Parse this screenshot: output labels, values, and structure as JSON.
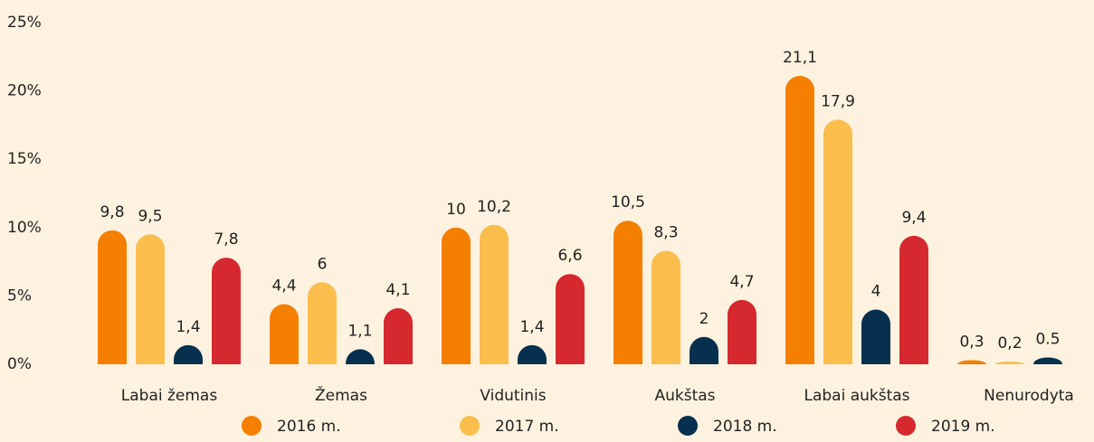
{
  "chart_data": {
    "type": "bar",
    "categories": [
      "Labai žemas",
      "Žemas",
      "Vidutinis",
      "Aukštas",
      "Labai aukštas",
      "Nenurodyta"
    ],
    "series": [
      {
        "name": "2016 m.",
        "color": "#f47f00",
        "values": [
          9.8,
          4.4,
          10,
          10.5,
          21.1,
          0.3
        ],
        "value_labels": [
          "9,8",
          "4,4",
          "10",
          "10,5",
          "21,1",
          "0,3"
        ]
      },
      {
        "name": "2017 m.",
        "color": "#fbbd4c",
        "values": [
          9.5,
          6,
          10.2,
          8.3,
          17.9,
          0.2
        ],
        "value_labels": [
          "9,5",
          "6",
          "10,2",
          "8,3",
          "17,9",
          "0,2"
        ]
      },
      {
        "name": "2018 m.",
        "color": "#07304f",
        "values": [
          1.4,
          1.1,
          1.4,
          2,
          4,
          0.5
        ],
        "value_labels": [
          "1,4",
          "1,1",
          "1,4",
          "2",
          "4",
          "0.5"
        ]
      },
      {
        "name": "2019 m.",
        "color": "#d6282f",
        "values": [
          7.8,
          4.1,
          6.6,
          4.7,
          9.4,
          null
        ],
        "value_labels": [
          "7,8",
          "4,1",
          "6,6",
          "4,7",
          "9,4",
          null
        ]
      }
    ],
    "ylim": [
      0,
      25
    ],
    "yticks": [
      {
        "value": 0,
        "label": "0%"
      },
      {
        "value": 5,
        "label": "5%"
      },
      {
        "value": 10,
        "label": "10%"
      },
      {
        "value": 15,
        "label": "15%"
      },
      {
        "value": 20,
        "label": "20%"
      },
      {
        "value": 25,
        "label": "25%"
      }
    ]
  }
}
